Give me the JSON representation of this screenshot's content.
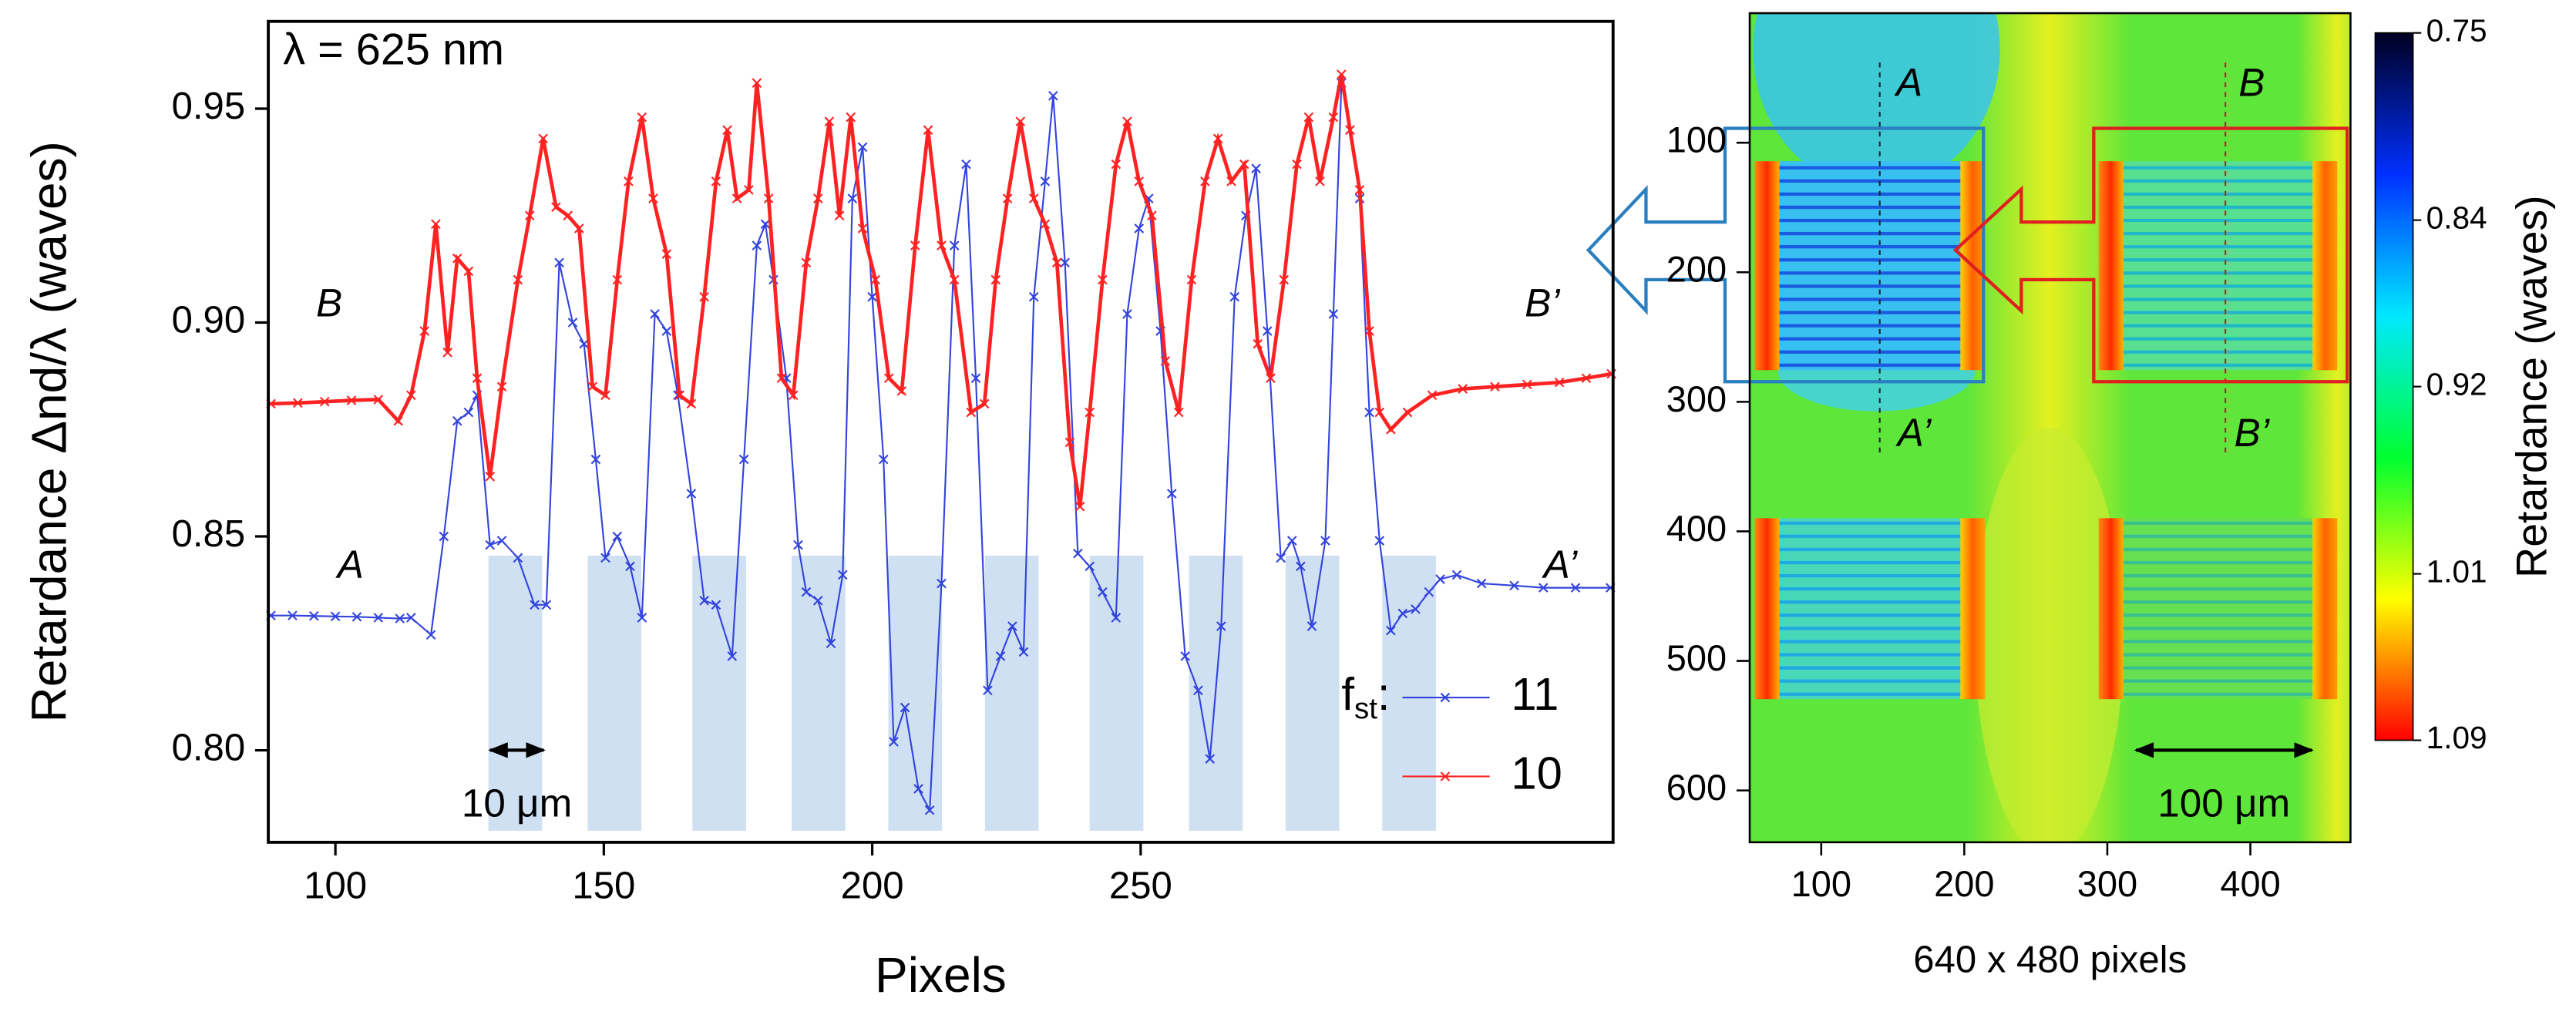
{
  "chart_data": [
    {
      "type": "line",
      "xlabel": "Pixels",
      "ylabel": "Retardance Δnd/λ (waves)",
      "xlim": [
        87.5,
        338
      ],
      "ylim": [
        0.7785,
        0.9704
      ],
      "xticks": [
        100,
        150,
        200,
        250
      ],
      "yticks": [
        {
          "value": 0.8,
          "label": "0.80"
        },
        0.85,
        {
          "value": 0.9,
          "label": "0.90"
        },
        0.95
      ],
      "annotations": [
        "λ = 625 nm",
        "B",
        "B’",
        "A",
        "A’"
      ],
      "scale_bar": {
        "label": "10 μm",
        "x": [
          128.8,
          138.8
        ]
      },
      "highlight_top": 0.8455,
      "highlight_bands": [
        [
          128.5,
          138.5
        ],
        [
          147,
          157
        ],
        [
          166.5,
          176.5
        ],
        [
          185,
          195
        ],
        [
          203,
          213
        ],
        [
          221,
          231
        ],
        [
          240.5,
          250.5
        ],
        [
          259,
          269
        ],
        [
          277,
          287
        ],
        [
          295,
          305
        ]
      ],
      "legend_title": [
        "f",
        "st",
        ":"
      ],
      "series": [
        {
          "name": "11",
          "color": "#3344dd",
          "marker": "x",
          "x": [
            88,
            92,
            96,
            100,
            104,
            108,
            112,
            114.1,
            117.8,
            120.2,
            122.7,
            124.8,
            126.4,
            128.8,
            131.0,
            134.0,
            137.1,
            139.3,
            141.7,
            144.2,
            146.3,
            148.5,
            150.3,
            152.5,
            154.9,
            157.1,
            159.5,
            161.7,
            163.8,
            166.3,
            168.7,
            170.9,
            173.9,
            176.1,
            178.5,
            180.1,
            181.6,
            184.0,
            186.2,
            187.7,
            189.9,
            192.3,
            194.5,
            196.3,
            198.2,
            200.0,
            202.1,
            204.0,
            206.1,
            208.6,
            210.7,
            212.9,
            215.3,
            217.5,
            219.3,
            221.5,
            223.9,
            226.1,
            228.2,
            230.1,
            232.2,
            233.7,
            235.9,
            238.3,
            240.5,
            242.9,
            245.4,
            247.5,
            249.7,
            251.5,
            253.7,
            255.8,
            258.3,
            260.7,
            262.9,
            265.0,
            267.5,
            269.6,
            271.5,
            273.6,
            276.1,
            278.2,
            279.8,
            281.9,
            284.4,
            285.9,
            287.4,
            289.0,
            290.8,
            292.6,
            294.5,
            296.6,
            298.8,
            301.2,
            303.7,
            305.8,
            308.9,
            313.5,
            319.6,
            325,
            331,
            337.5
          ],
          "values": [
            0.8315,
            0.8315,
            0.8314,
            0.8313,
            0.8312,
            0.831,
            0.8308,
            0.831,
            0.827,
            0.85,
            0.877,
            0.879,
            0.883,
            0.848,
            0.849,
            0.845,
            0.834,
            0.834,
            0.914,
            0.9,
            0.895,
            0.868,
            0.845,
            0.85,
            0.843,
            0.831,
            0.902,
            0.898,
            0.883,
            0.86,
            0.835,
            0.834,
            0.822,
            0.868,
            0.918,
            0.923,
            0.91,
            0.887,
            0.848,
            0.837,
            0.835,
            0.825,
            0.841,
            0.929,
            0.941,
            0.906,
            0.868,
            0.802,
            0.81,
            0.791,
            0.786,
            0.839,
            0.918,
            0.937,
            0.887,
            0.814,
            0.822,
            0.829,
            0.823,
            0.906,
            0.933,
            0.953,
            0.914,
            0.846,
            0.843,
            0.837,
            0.831,
            0.902,
            0.922,
            0.929,
            0.898,
            0.86,
            0.822,
            0.814,
            0.798,
            0.829,
            0.906,
            0.925,
            0.936,
            0.898,
            0.845,
            0.849,
            0.843,
            0.829,
            0.849,
            0.902,
            0.956,
            0.945,
            0.929,
            0.879,
            0.849,
            0.828,
            0.832,
            0.833,
            0.837,
            0.84,
            0.841,
            0.839,
            0.8385,
            0.838,
            0.838,
            0.838
          ]
        },
        {
          "name": "10",
          "color": "#ff2222",
          "marker": "x",
          "x": [
            88,
            93,
            98,
            103,
            108,
            111.7,
            114.1,
            116.6,
            118.7,
            120.9,
            122.7,
            124.8,
            126.4,
            128.8,
            131.0,
            134.0,
            136.2,
            138.7,
            141.1,
            143.3,
            145.4,
            147.9,
            150.3,
            152.5,
            154.6,
            157.1,
            159.2,
            161.7,
            164.1,
            166.3,
            168.7,
            170.9,
            173.0,
            174.8,
            177.0,
            178.5,
            180.7,
            183.1,
            185.3,
            187.7,
            189.9,
            192.0,
            193.9,
            196.0,
            198.2,
            200.6,
            203.1,
            205.5,
            208.0,
            210.4,
            212.9,
            215.3,
            218.4,
            220.9,
            223.0,
            225.2,
            227.6,
            230.1,
            232.2,
            234.4,
            236.8,
            238.7,
            240.5,
            242.9,
            245.4,
            247.5,
            249.7,
            252.1,
            254.6,
            257.1,
            259.5,
            262.0,
            264.4,
            266.9,
            269.3,
            271.8,
            274.2,
            276.7,
            279.1,
            281.3,
            283.4,
            285.9,
            287.4,
            289.0,
            290.8,
            292.6,
            294.5,
            296.6,
            299.7,
            304.3,
            310,
            316,
            322,
            328,
            333,
            337.7
          ],
          "values": [
            0.881,
            0.8812,
            0.8815,
            0.8818,
            0.882,
            0.877,
            0.883,
            0.898,
            0.923,
            0.893,
            0.915,
            0.912,
            0.887,
            0.864,
            0.885,
            0.91,
            0.925,
            0.943,
            0.927,
            0.925,
            0.922,
            0.885,
            0.883,
            0.91,
            0.933,
            0.948,
            0.929,
            0.916,
            0.883,
            0.881,
            0.906,
            0.933,
            0.945,
            0.929,
            0.931,
            0.956,
            0.929,
            0.887,
            0.883,
            0.914,
            0.929,
            0.947,
            0.925,
            0.948,
            0.922,
            0.91,
            0.887,
            0.884,
            0.918,
            0.945,
            0.918,
            0.91,
            0.879,
            0.881,
            0.91,
            0.929,
            0.947,
            0.929,
            0.923,
            0.914,
            0.872,
            0.857,
            0.879,
            0.91,
            0.937,
            0.947,
            0.933,
            0.925,
            0.891,
            0.879,
            0.91,
            0.933,
            0.943,
            0.933,
            0.937,
            0.895,
            0.887,
            0.91,
            0.937,
            0.948,
            0.933,
            0.948,
            0.958,
            0.945,
            0.931,
            0.898,
            0.879,
            0.875,
            0.879,
            0.883,
            0.8845,
            0.885,
            0.8855,
            0.886,
            0.887,
            0.888
          ]
        }
      ]
    },
    {
      "type": "heatmap",
      "xlabel": "640 x 480 pixels",
      "xlim": [
        50,
        470
      ],
      "ylim": [
        640,
        0
      ],
      "xticks": [
        100,
        200,
        300,
        400
      ],
      "yticks": [
        100,
        200,
        300,
        400,
        500,
        600
      ],
      "labels": [
        "A",
        "B",
        "A’",
        "B’"
      ],
      "scale_bar": {
        "label": "100 μm",
        "x": [
          320,
          443
        ]
      },
      "colorbar": {
        "label": "Retardance (waves)",
        "clim": [
          0.75,
          1.09
        ],
        "ticks": [
          0.75,
          0.84,
          0.92,
          1.01,
          1.09
        ],
        "colors": [
          "#000022",
          "#0030ff",
          "#00e8ff",
          "#00ff30",
          "#ffff00",
          "#ff0000"
        ]
      }
    }
  ]
}
